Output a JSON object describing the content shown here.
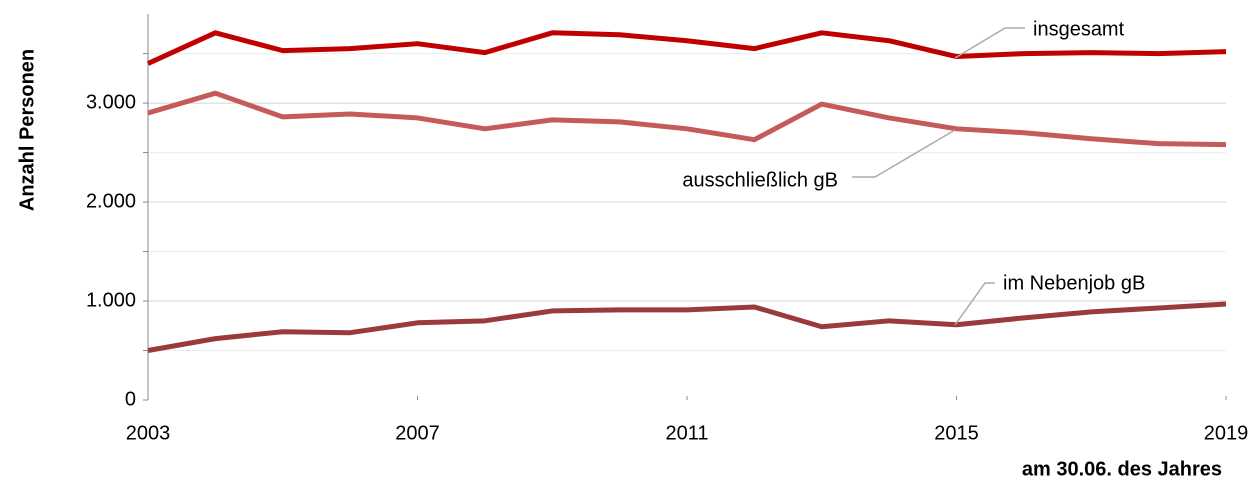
{
  "chart_data": {
    "type": "line",
    "y_label": "Anzahl Personen",
    "x_label": "am 30.06. des Jahres",
    "x": [
      2003,
      2004,
      2005,
      2006,
      2007,
      2008,
      2009,
      2010,
      2011,
      2012,
      2013,
      2014,
      2015,
      2016,
      2017,
      2018,
      2019
    ],
    "series": [
      {
        "name": "insgesamt",
        "color": "#c00000",
        "values": [
          3400,
          3710,
          3530,
          3550,
          3600,
          3510,
          3710,
          3690,
          3630,
          3550,
          3710,
          3630,
          3470,
          3500,
          3510,
          3500,
          3520
        ]
      },
      {
        "name": "ausschließlich gB",
        "color": "#c55a5a",
        "values": [
          2900,
          3100,
          2860,
          2890,
          2850,
          2740,
          2830,
          2810,
          2740,
          2630,
          2990,
          2850,
          2740,
          2700,
          2640,
          2590,
          2580
        ]
      },
      {
        "name": "im Nebenjob gB",
        "color": "#9b3a3a",
        "values": [
          500,
          620,
          690,
          680,
          780,
          800,
          900,
          910,
          910,
          940,
          740,
          800,
          760,
          830,
          890,
          930,
          970
        ]
      }
    ],
    "xlim": [
      2003,
      2019
    ],
    "xticks": [
      2003,
      2007,
      2011,
      2015,
      2019
    ],
    "ylim": [
      0,
      3900
    ],
    "yticks": [
      0,
      {
        "value": 1000,
        "label": "1.000"
      },
      {
        "value": 2000,
        "label": "2.000"
      },
      {
        "value": 3000,
        "label": "3.000"
      }
    ],
    "minor_yticks": [
      500,
      1500,
      2500,
      3500
    ],
    "grid": true
  }
}
